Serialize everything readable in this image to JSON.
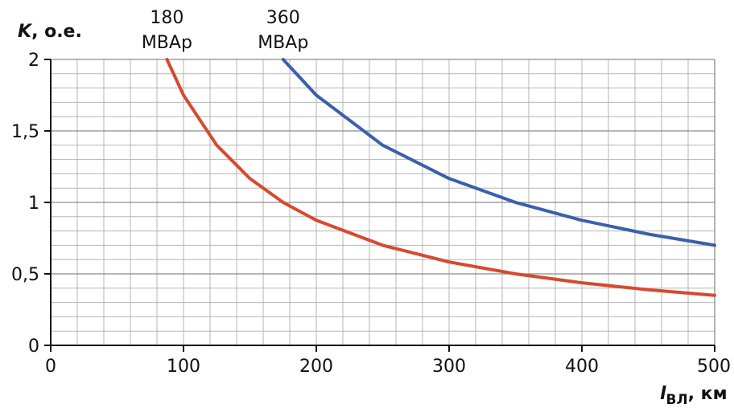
{
  "chart_data": {
    "type": "line",
    "title": "",
    "ylabel": {
      "symbol": "K",
      "unit": ", о.е."
    },
    "xlabel": {
      "symbol": "l",
      "subscript": "ВЛ",
      "unit": ", км"
    },
    "xlim": [
      0,
      500
    ],
    "ylim": [
      0,
      2
    ],
    "x_ticks": [
      0,
      100,
      200,
      300,
      400,
      500
    ],
    "x_tick_labels": [
      "0",
      "100",
      "200",
      "300",
      "400",
      "500"
    ],
    "y_ticks": [
      0,
      0.5,
      1,
      1.5,
      2
    ],
    "y_tick_labels": [
      "0",
      "0,5",
      "1",
      "1,5",
      "2"
    ],
    "grid": true,
    "grid_minor_x_step": 20,
    "grid_minor_y_step": 0.1,
    "series": [
      {
        "name": "180 МВАр",
        "name_lines": [
          "180",
          "МВАр"
        ],
        "color": "#d64a2f",
        "x": [
          87.5,
          100,
          125,
          150,
          175,
          200,
          250,
          300,
          350,
          400,
          450,
          500
        ],
        "y": [
          2.0,
          1.75,
          1.4,
          1.167,
          1.0,
          0.875,
          0.7,
          0.583,
          0.5,
          0.4375,
          0.389,
          0.35
        ]
      },
      {
        "name": "360 МВАр",
        "name_lines": [
          "360",
          "МВАр"
        ],
        "color": "#3b5fad",
        "x": [
          175,
          200,
          250,
          300,
          350,
          400,
          450,
          500
        ],
        "y": [
          2.0,
          1.75,
          1.4,
          1.167,
          1.0,
          0.875,
          0.778,
          0.7
        ]
      }
    ]
  }
}
